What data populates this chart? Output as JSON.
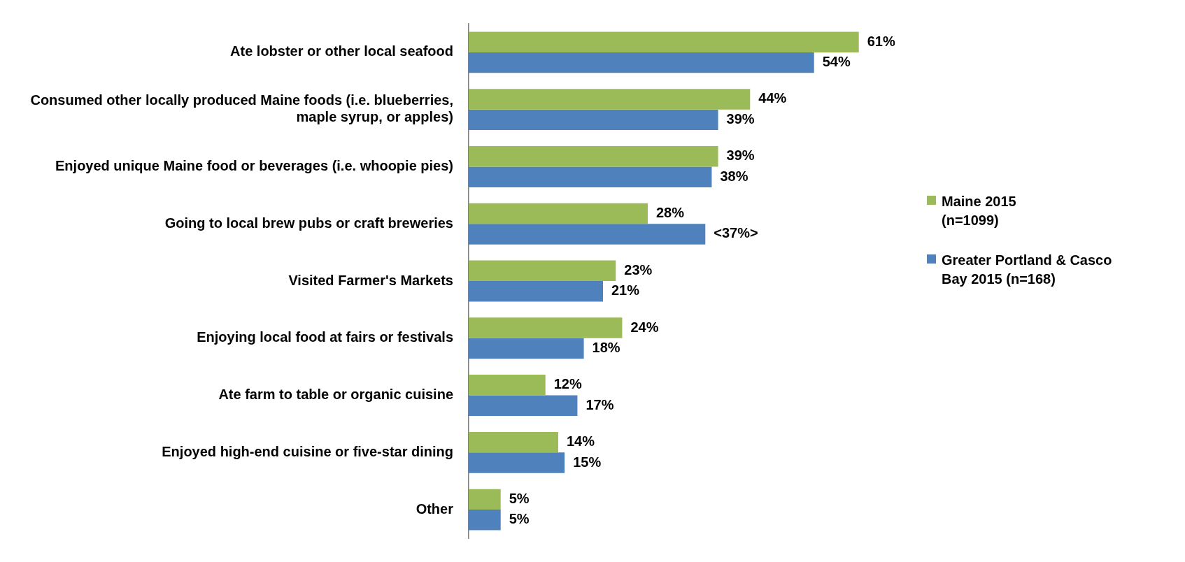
{
  "chart_data": {
    "type": "bar",
    "orientation": "horizontal",
    "legend": "right",
    "categories": [
      "Ate lobster or other local seafood",
      "Consumed other locally produced Maine foods (i.e. blueberries, maple syrup, or apples)",
      "Enjoyed unique Maine food or beverages (i.e. whoopie pies)",
      "Going to local brew pubs or craft breweries",
      "Visited Farmer's Markets",
      "Enjoying local food at fairs or festivals",
      "Ate farm to table or organic cuisine",
      "Enjoyed high-end cuisine or five-star dining",
      "Other"
    ],
    "series": [
      {
        "name": "Maine 2015 (n=1099)",
        "color": "#9bbb59",
        "values": [
          61,
          44,
          39,
          28,
          23,
          24,
          12,
          14,
          5
        ],
        "value_labels": [
          "61%",
          "44%",
          "39%",
          "28%",
          "23%",
          "24%",
          "12%",
          "14%",
          "5%"
        ]
      },
      {
        "name": "Greater Portland & Casco Bay 2015 (n=168)",
        "color": "#4f81bd",
        "values": [
          54,
          39,
          38,
          37,
          21,
          18,
          17,
          15,
          5
        ],
        "value_labels": [
          "54%",
          "39%",
          "38%",
          "<37%>",
          "21%",
          "18%",
          "17%",
          "15%",
          "5%"
        ]
      }
    ]
  }
}
